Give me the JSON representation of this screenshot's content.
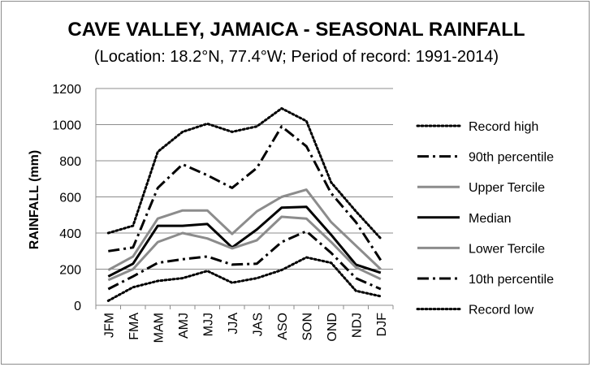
{
  "chart_data": {
    "type": "line",
    "title": "CAVE VALLEY, JAMAICA - SEASONAL RAINFALL",
    "subtitle": "(Location: 18.2°N, 77.4°W; Period of record: 1991-2014)",
    "xlabel": "",
    "ylabel": "RAINFALL (mm)",
    "ylim": [
      0,
      1200
    ],
    "yticks": [
      0,
      200,
      400,
      600,
      800,
      1000,
      1200
    ],
    "grid": true,
    "legend_position": "right",
    "categories": [
      "JFM",
      "FMA",
      "MAM",
      "AMJ",
      "MJJ",
      "JJA",
      "JAS",
      "ASO",
      "SON",
      "OND",
      "NDJ",
      "DJF"
    ],
    "series": [
      {
        "name": "Record high",
        "style": "dotted",
        "color": "#000000",
        "values": [
          400,
          440,
          850,
          960,
          1005,
          960,
          990,
          1090,
          1020,
          680,
          520,
          370
        ]
      },
      {
        "name": "90th percentile",
        "style": "dashdot",
        "color": "#000000",
        "values": [
          300,
          320,
          650,
          780,
          720,
          650,
          760,
          990,
          880,
          620,
          460,
          250
        ]
      },
      {
        "name": "Upper Tercile",
        "style": "solid",
        "color": "#8c8c8c",
        "values": [
          195,
          270,
          480,
          525,
          525,
          395,
          520,
          600,
          640,
          460,
          330,
          200
        ]
      },
      {
        "name": "Median",
        "style": "solid",
        "color": "#000000",
        "values": [
          160,
          230,
          440,
          440,
          450,
          320,
          420,
          540,
          545,
          390,
          225,
          180
        ]
      },
      {
        "name": "Lower Tercile",
        "style": "solid",
        "color": "#8c8c8c",
        "values": [
          140,
          200,
          350,
          400,
          370,
          315,
          360,
          490,
          480,
          350,
          210,
          145
        ]
      },
      {
        "name": "10th percentile",
        "style": "dashdot",
        "color": "#000000",
        "values": [
          90,
          160,
          235,
          255,
          270,
          225,
          230,
          350,
          410,
          290,
          150,
          90
        ]
      },
      {
        "name": "Record low",
        "style": "dotted",
        "color": "#000000",
        "values": [
          25,
          100,
          135,
          150,
          190,
          125,
          150,
          195,
          265,
          235,
          80,
          50
        ]
      }
    ]
  }
}
